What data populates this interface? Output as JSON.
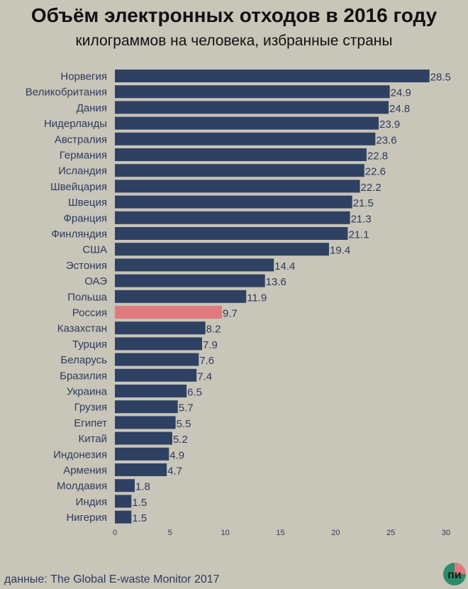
{
  "header": {
    "title": "Объём электронных отходов в 2016 году",
    "subtitle": "килограммов на человека, избранные страны"
  },
  "footer": {
    "source": "данные: The Global E-waste Monitor 2017"
  },
  "logo": {
    "letters": "пи"
  },
  "colors": {
    "bar": "#2f4162",
    "highlight": "#e07a7e",
    "text": "#2f3b5a",
    "background": "#c8c5b9"
  },
  "chart_data": {
    "type": "bar",
    "orientation": "horizontal",
    "categories": [
      "Норвегия",
      "Великобритания",
      "Дания",
      "Нидерланды",
      "Австралия",
      "Германия",
      "Исландия",
      "Швейцария",
      "Швеция",
      "Франция",
      "Финляндия",
      "США",
      "Эстония",
      "ОАЭ",
      "Польша",
      "Россия",
      "Казахстан",
      "Турция",
      "Беларусь",
      "Бразилия",
      "Украина",
      "Грузия",
      "Египет",
      "Китай",
      "Индонезия",
      "Армения",
      "Молдавия",
      "Индия",
      "Нигерия"
    ],
    "values": [
      28.5,
      24.9,
      24.8,
      23.9,
      23.6,
      22.8,
      22.6,
      22.2,
      21.5,
      21.3,
      21.1,
      19.4,
      14.4,
      13.6,
      11.9,
      9.7,
      8.2,
      7.9,
      7.6,
      7.4,
      6.5,
      5.7,
      5.5,
      5.2,
      4.9,
      4.7,
      1.8,
      1.5,
      1.5
    ],
    "value_labels": [
      "28.5",
      "24.9",
      "24.8",
      "23.9",
      "23.6",
      "22.8",
      "22.6",
      "22.2",
      "21.5",
      "21.3",
      "21.1",
      "19.4",
      "14.4",
      "13.6",
      "11.9",
      "9.7",
      "8.2",
      "7.9",
      "7.6",
      "7.4",
      "6.5",
      "5.7",
      "5.5",
      "5.2",
      "4.9",
      "4.7",
      "1.8",
      "1.5",
      "1.5"
    ],
    "highlight": "Россия",
    "xlim": [
      0,
      30
    ],
    "xticks": [
      0,
      5,
      10,
      15,
      20,
      25,
      30
    ],
    "grid": false,
    "xlabel": "",
    "ylabel": ""
  }
}
